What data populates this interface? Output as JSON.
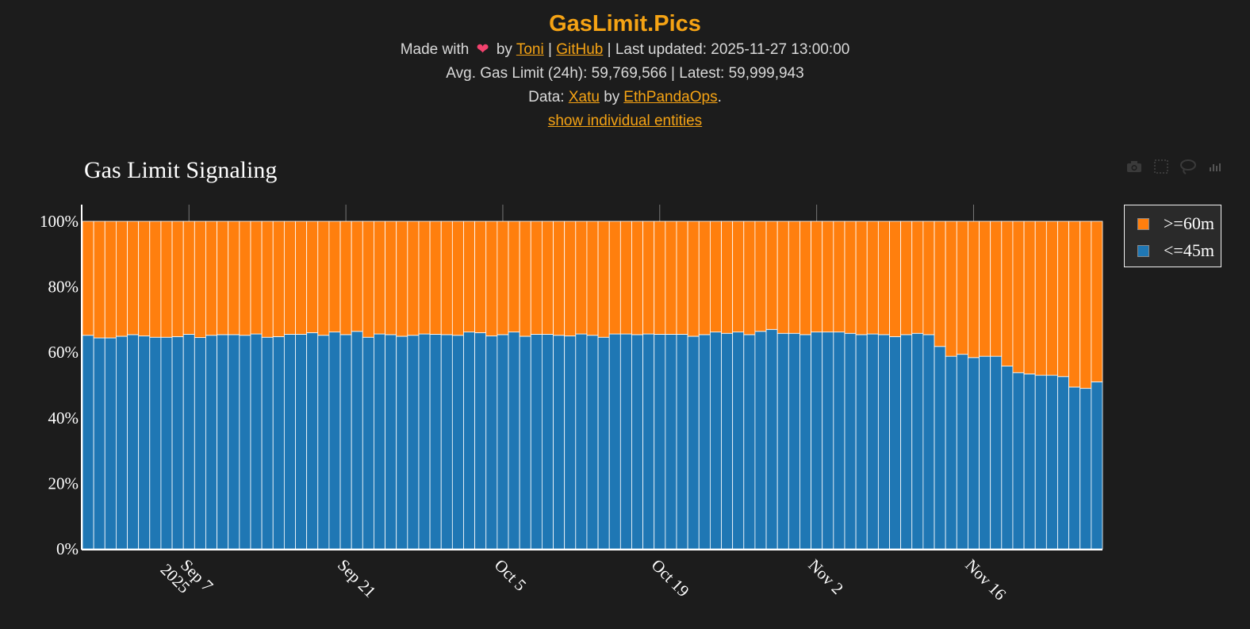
{
  "header": {
    "title": "GasLimit.Pics",
    "made_with": "Made with",
    "heart_icon": "heart",
    "by": "by",
    "author_link": "Toni",
    "sep1": "|",
    "github_link": "GitHub",
    "last_updated": "| Last updated: 2025-11-27 13:00:00",
    "stats": "Avg. Gas Limit (24h): 59,769,566 | Latest: 59,999,943",
    "data_prefix": "Data:",
    "data_link": "Xatu",
    "data_by": "by",
    "data_org_link": "EthPandaOps",
    "data_suffix": ".",
    "toggle_link": "show individual entities"
  },
  "toolbar": {
    "icons": [
      "camera-icon",
      "box-select-icon",
      "lasso-icon",
      "plotly-logo-icon"
    ]
  },
  "colors": {
    "le45": "#1f77b4",
    "ge60": "#ff7f0e",
    "accent": "#f5a314",
    "background": "#1c1c1c"
  },
  "chart_data": {
    "type": "bar",
    "stacked": "percent",
    "title": "Gas Limit Signaling",
    "xlabel": "",
    "ylabel": "",
    "ylim": [
      0,
      100
    ],
    "y_ticks": [
      "0%",
      "20%",
      "40%",
      "60%",
      "80%",
      "100%"
    ],
    "x_ticks": [
      {
        "label": "Sep 7",
        "sub": "2025",
        "day_index": 9
      },
      {
        "label": "Sep 21",
        "sub": "",
        "day_index": 23
      },
      {
        "label": "Oct 5",
        "sub": "",
        "day_index": 37
      },
      {
        "label": "Oct 19",
        "sub": "",
        "day_index": 51
      },
      {
        "label": "Nov 2",
        "sub": "",
        "day_index": 65
      },
      {
        "label": "Nov 16",
        "sub": "",
        "day_index": 79
      }
    ],
    "x_start": "2025-08-29",
    "x_end": "2025-11-27",
    "legend": [
      ">=60m",
      "<=45m"
    ],
    "legend_position": "top-right outside",
    "series": [
      {
        "name": "<=45m",
        "color": "#1f77b4",
        "values": [
          65.2,
          64.4,
          64.4,
          64.9,
          65.4,
          65.0,
          64.6,
          64.6,
          64.8,
          65.5,
          64.5,
          65.2,
          65.4,
          65.4,
          65.2,
          65.6,
          64.6,
          64.8,
          65.5,
          65.5,
          66.0,
          65.2,
          66.2,
          65.4,
          66.4,
          64.6,
          65.6,
          65.4,
          64.9,
          65.2,
          65.6,
          65.5,
          65.4,
          65.2,
          66.2,
          66.0,
          65.0,
          65.4,
          66.2,
          64.9,
          65.5,
          65.5,
          65.2,
          65.0,
          65.6,
          65.2,
          64.6,
          65.6,
          65.6,
          65.4,
          65.6,
          65.5,
          65.5,
          65.5,
          64.9,
          65.4,
          66.2,
          65.8,
          66.2,
          65.4,
          66.4,
          67.0,
          65.8,
          65.8,
          65.4,
          66.2,
          66.2,
          66.2,
          65.8,
          65.4,
          65.6,
          65.4,
          64.8,
          65.4,
          65.8,
          65.4,
          61.8,
          58.8,
          59.4,
          58.4,
          58.8,
          58.8,
          55.8,
          53.8,
          53.4,
          53.0,
          53.0,
          52.6,
          49.4,
          49.0,
          51.0
        ]
      },
      {
        "name": ">=60m",
        "color": "#ff7f0e",
        "values": "100 - <=45m"
      }
    ]
  }
}
